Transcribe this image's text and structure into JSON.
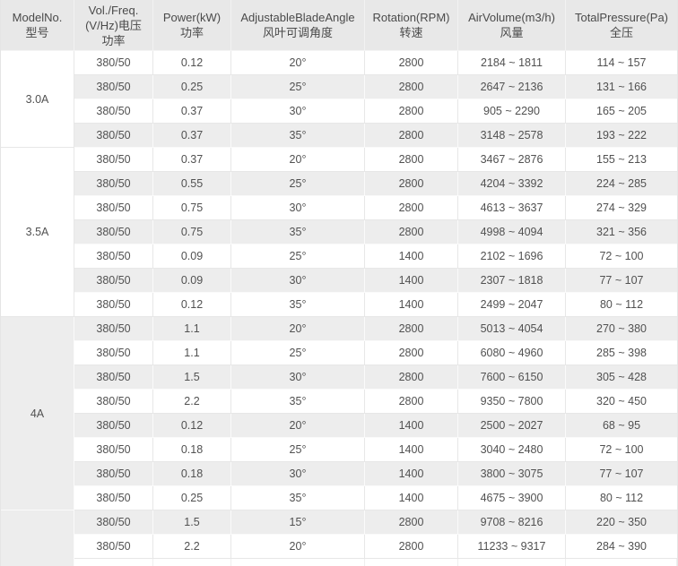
{
  "colors": {
    "header_bg": "#e8e8e8",
    "stripe_bg": "#ededed",
    "row_bg": "#ffffff",
    "border_on_white": "#e7e7e7",
    "border_on_grey": "#fafafa",
    "header_text": "#4a4a4a",
    "cell_text": "#515151"
  },
  "table": {
    "headers": [
      {
        "name": "model",
        "lines": [
          "ModelNo.",
          "型号"
        ]
      },
      {
        "name": "voltage",
        "lines": [
          "Vol./Freq.",
          "(V/Hz)电压",
          "功率"
        ]
      },
      {
        "name": "power",
        "lines": [
          "Power(kW)",
          "功率"
        ]
      },
      {
        "name": "angle",
        "lines": [
          "AdjustableBladeAngle",
          "风叶可调角度"
        ]
      },
      {
        "name": "rpm",
        "lines": [
          "Rotation(RPM)",
          "转速"
        ]
      },
      {
        "name": "airvolume",
        "lines": [
          "AirVolume(m3/h)",
          "风量"
        ]
      },
      {
        "name": "pressure",
        "lines": [
          "TotalPressure(Pa)",
          "全压"
        ]
      }
    ],
    "column_keys": [
      "voltage",
      "power",
      "angle",
      "rpm",
      "air_volume",
      "pressure"
    ],
    "groups": [
      {
        "model": "3.0A",
        "rows": [
          {
            "voltage": "380/50",
            "power": "0.12",
            "angle": "20°",
            "rpm": "2800",
            "air_volume": "2184 ~ 1811",
            "pressure": "114 ~ 157"
          },
          {
            "voltage": "380/50",
            "power": "0.25",
            "angle": "25°",
            "rpm": "2800",
            "air_volume": "2647 ~ 2136",
            "pressure": "131 ~ 166"
          },
          {
            "voltage": "380/50",
            "power": "0.37",
            "angle": "30°",
            "rpm": "2800",
            "air_volume": "905 ~ 2290",
            "pressure": "165 ~ 205"
          },
          {
            "voltage": "380/50",
            "power": "0.37",
            "angle": "35°",
            "rpm": "2800",
            "air_volume": "3148 ~ 2578",
            "pressure": "193 ~ 222"
          }
        ]
      },
      {
        "model": "3.5A",
        "rows": [
          {
            "voltage": "380/50",
            "power": "0.37",
            "angle": "20°",
            "rpm": "2800",
            "air_volume": "3467 ~ 2876",
            "pressure": "155 ~ 213"
          },
          {
            "voltage": "380/50",
            "power": "0.55",
            "angle": "25°",
            "rpm": "2800",
            "air_volume": "4204 ~ 3392",
            "pressure": "224 ~ 285"
          },
          {
            "voltage": "380/50",
            "power": "0.75",
            "angle": "30°",
            "rpm": "2800",
            "air_volume": "4613 ~ 3637",
            "pressure": "274 ~ 329"
          },
          {
            "voltage": "380/50",
            "power": "0.75",
            "angle": "35°",
            "rpm": "2800",
            "air_volume": "4998 ~ 4094",
            "pressure": "321 ~ 356"
          },
          {
            "voltage": "380/50",
            "power": "0.09",
            "angle": "25°",
            "rpm": "1400",
            "air_volume": "2102 ~ 1696",
            "pressure": "72 ~ 100"
          },
          {
            "voltage": "380/50",
            "power": "0.09",
            "angle": "30°",
            "rpm": "1400",
            "air_volume": "2307 ~ 1818",
            "pressure": "77 ~ 107"
          },
          {
            "voltage": "380/50",
            "power": "0.12",
            "angle": "35°",
            "rpm": "1400",
            "air_volume": "2499 ~ 2047",
            "pressure": "80 ~ 112"
          }
        ]
      },
      {
        "model": "4A",
        "rows": [
          {
            "voltage": "380/50",
            "power": "1.1",
            "angle": "20°",
            "rpm": "2800",
            "air_volume": "5013 ~ 4054",
            "pressure": "270 ~ 380"
          },
          {
            "voltage": "380/50",
            "power": "1.1",
            "angle": "25°",
            "rpm": "2800",
            "air_volume": "6080 ~ 4960",
            "pressure": "285 ~ 398"
          },
          {
            "voltage": "380/50",
            "power": "1.5",
            "angle": "30°",
            "rpm": "2800",
            "air_volume": "7600 ~ 6150",
            "pressure": "305 ~ 428"
          },
          {
            "voltage": "380/50",
            "power": "2.2",
            "angle": "35°",
            "rpm": "2800",
            "air_volume": "9350 ~ 7800",
            "pressure": "320 ~ 450"
          },
          {
            "voltage": "380/50",
            "power": "0.12",
            "angle": "20°",
            "rpm": "1400",
            "air_volume": "2500 ~ 2027",
            "pressure": "68 ~ 95"
          },
          {
            "voltage": "380/50",
            "power": "0.18",
            "angle": "25°",
            "rpm": "1400",
            "air_volume": "3040 ~ 2480",
            "pressure": "72 ~ 100"
          },
          {
            "voltage": "380/50",
            "power": "0.18",
            "angle": "30°",
            "rpm": "1400",
            "air_volume": "3800 ~ 3075",
            "pressure": "77 ~ 107"
          },
          {
            "voltage": "380/50",
            "power": "0.25",
            "angle": "35°",
            "rpm": "1400",
            "air_volume": "4675 ~ 3900",
            "pressure": "80 ~ 112"
          }
        ]
      },
      {
        "model": "",
        "rows": [
          {
            "voltage": "380/50",
            "power": "1.5",
            "angle": "15°",
            "rpm": "2800",
            "air_volume": "9708 ~ 8216",
            "pressure": "220 ~ 350"
          },
          {
            "voltage": "380/50",
            "power": "2.2",
            "angle": "20°",
            "rpm": "2800",
            "air_volume": "11233 ~ 9317",
            "pressure": "284 ~ 390"
          }
        ]
      }
    ]
  }
}
